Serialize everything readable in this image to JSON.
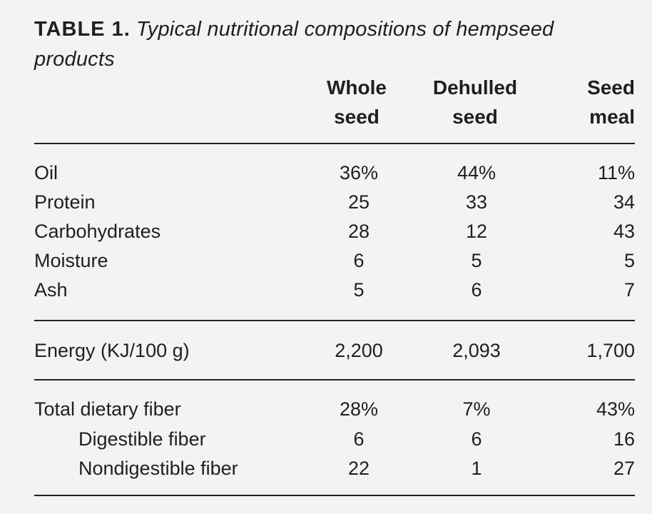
{
  "table": {
    "caption_label": "TABLE 1.",
    "caption_text": "Typical nutritional compositions of hempseed products",
    "columns": [
      {
        "line1": "Whole",
        "line2": "seed"
      },
      {
        "line1": "Dehulled",
        "line2": "seed"
      },
      {
        "line1": "Seed",
        "line2": "meal"
      }
    ],
    "sections": [
      {
        "rows": [
          {
            "label": "Oil",
            "values": [
              "36%",
              "44%",
              "11%"
            ],
            "indent": false
          },
          {
            "label": "Protein",
            "values": [
              "25",
              "33",
              "34"
            ],
            "indent": false
          },
          {
            "label": "Carbohydrates",
            "values": [
              "28",
              "12",
              "43"
            ],
            "indent": false
          },
          {
            "label": "Moisture",
            "values": [
              "6",
              "5",
              "5"
            ],
            "indent": false
          },
          {
            "label": "Ash",
            "values": [
              "5",
              "6",
              "7"
            ],
            "indent": false
          }
        ]
      },
      {
        "rows": [
          {
            "label": "Energy (KJ/100 g)",
            "values": [
              "2,200",
              "2,093",
              "1,700"
            ],
            "indent": false
          }
        ]
      },
      {
        "rows": [
          {
            "label": "Total dietary fiber",
            "values": [
              "28%",
              "7%",
              "43%"
            ],
            "indent": false
          },
          {
            "label": "Digestible fiber",
            "values": [
              "6",
              "6",
              "16"
            ],
            "indent": true
          },
          {
            "label": "Nondigestible fiber",
            "values": [
              "22",
              "1",
              "27"
            ],
            "indent": true
          }
        ]
      }
    ]
  }
}
